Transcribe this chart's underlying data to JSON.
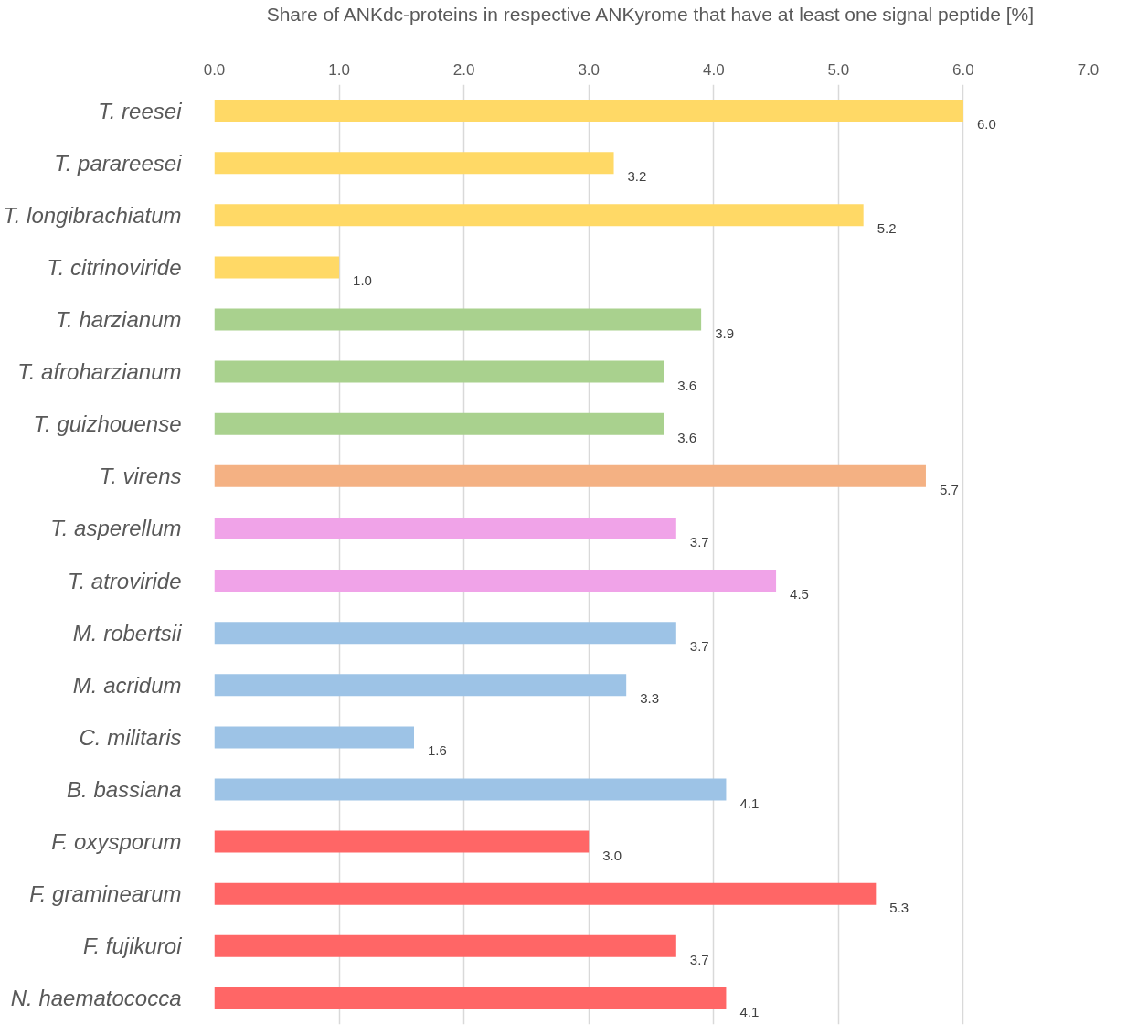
{
  "chart_data": {
    "type": "bar",
    "orientation": "horizontal",
    "xlabel": "Share of ANKdc-proteins in respective ANKyrome that have at least one signal peptide [%]",
    "categories": [
      "T. reesei",
      "T. parareesei",
      "T. longibrachiatum",
      "T. citrinoviride",
      "T. harzianum",
      "T. afroharzianum",
      "T. guizhouense",
      "T. virens",
      "T. asperellum",
      "T. atroviride",
      "M. robertsii",
      "M. acridum",
      "C. militaris",
      "B. bassiana",
      "F. oxysporum",
      "F. graminearum",
      "F. fujikuroi",
      "N. haematococca"
    ],
    "values": [
      6.0,
      3.2,
      5.2,
      1.0,
      3.9,
      3.6,
      3.6,
      5.7,
      3.7,
      4.5,
      3.7,
      3.3,
      1.6,
      4.1,
      3.0,
      5.3,
      3.7,
      4.1
    ],
    "colors": [
      "#ffd966",
      "#ffd966",
      "#ffd966",
      "#ffd966",
      "#a9d18e",
      "#a9d18e",
      "#a9d18e",
      "#f4b183",
      "#f0a3e8",
      "#f0a3e8",
      "#9dc3e6",
      "#9dc3e6",
      "#9dc3e6",
      "#9dc3e6",
      "#ff6666",
      "#ff6666",
      "#ff6666",
      "#ff6666"
    ],
    "xlim": [
      0,
      7
    ],
    "value_labels": [
      "6.0",
      "3.2",
      "5.2",
      "1.0",
      "3.9",
      "3.6",
      "3.6",
      "5.7",
      "3.7",
      "4.5",
      "3.7",
      "3.3",
      "1.6",
      "4.1",
      "3.0",
      "5.3",
      "3.7",
      "4.1"
    ],
    "xticks": [
      {
        "value": 0,
        "label": "0.0"
      },
      {
        "value": 1,
        "label": "1.0"
      },
      {
        "value": 2,
        "label": "2.0"
      },
      {
        "value": 3,
        "label": "3.0"
      },
      {
        "value": 4,
        "label": "4.0"
      },
      {
        "value": 5,
        "label": "5.0"
      },
      {
        "value": 6,
        "label": "6.0"
      },
      {
        "value": 7,
        "label": "7.0"
      }
    ],
    "grid": "x"
  }
}
